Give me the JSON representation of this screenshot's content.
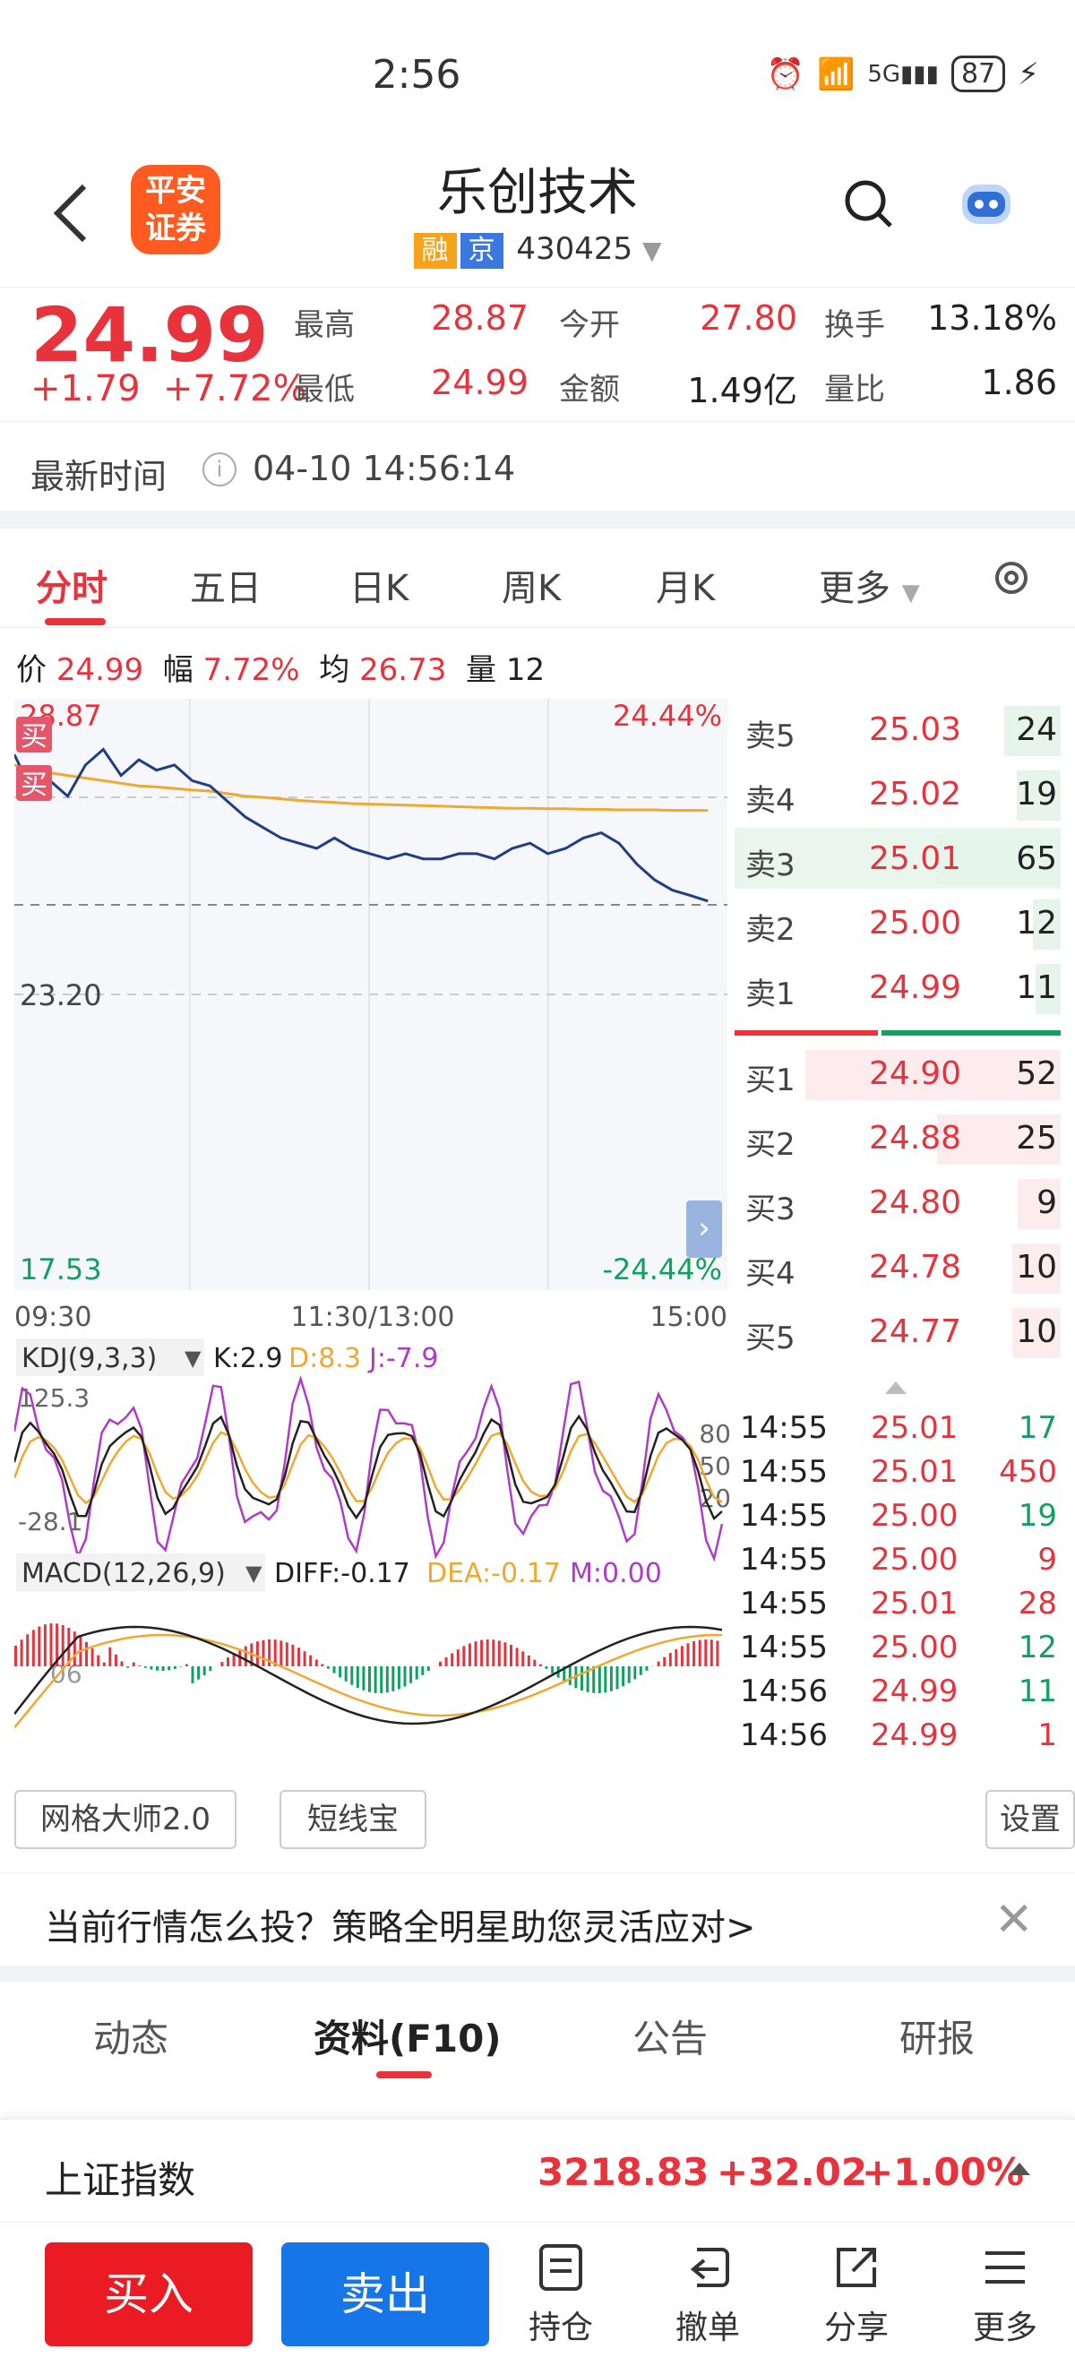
{
  "status_bar": {
    "time": "2:56",
    "battery": "87"
  },
  "header": {
    "back_icon": "chevron-left-icon",
    "logo_line1": "平安",
    "logo_line2": "证券",
    "stock_name": "乐创技术",
    "tag1": "融",
    "tag2": "京",
    "stock_code": "430425"
  },
  "quote": {
    "price": "24.99",
    "change": "+1.79",
    "change_pct": "+7.72%",
    "high_label": "最高",
    "high": "28.87",
    "open_label": "今开",
    "open": "27.80",
    "turnover_label": "换手",
    "turnover": "13.18%",
    "low_label": "最低",
    "low": "24.99",
    "amount_label": "金额",
    "amount": "1.49亿",
    "vol_ratio_label": "量比",
    "vol_ratio": "1.86"
  },
  "latest": {
    "label": "最新时间",
    "info": "i",
    "time": "04-10 14:56:14"
  },
  "tabs": [
    "分时",
    "五日",
    "日K",
    "周K",
    "月K",
    "更多"
  ],
  "indicators": {
    "price_label": "价",
    "price": "24.99",
    "range_label": "幅",
    "range": "7.72%",
    "avg_label": "均",
    "avg": "26.73",
    "vol_label": "量",
    "vol": "12"
  },
  "chart_data": {
    "type": "line",
    "y_top_label": "28.87",
    "y_mid_label": "23.20",
    "y_bottom_label": "17.53",
    "pct_top_label": "24.44%",
    "pct_bottom_label": "-24.44%",
    "x_labels": [
      "09:30",
      "11:30/13:00",
      "15:00"
    ],
    "ylim": [
      17.53,
      28.87
    ],
    "ref_price": 23.2,
    "buy_markers": [
      "买",
      "买"
    ],
    "price_series": [
      27.8,
      27.1,
      27.3,
      27.0,
      27.6,
      27.9,
      27.4,
      27.7,
      27.5,
      27.6,
      27.3,
      27.2,
      26.9,
      26.6,
      26.4,
      26.2,
      26.1,
      26.0,
      26.2,
      26.0,
      25.9,
      25.8,
      25.9,
      25.8,
      25.8,
      25.9,
      25.9,
      25.8,
      26.0,
      26.1,
      25.9,
      26.0,
      26.2,
      26.3,
      26.1,
      25.7,
      25.4,
      25.2,
      25.1,
      24.99
    ],
    "avg_series": [
      27.6,
      27.5,
      27.45,
      27.4,
      27.35,
      27.3,
      27.25,
      27.2,
      27.18,
      27.15,
      27.12,
      27.1,
      27.05,
      27.0,
      26.98,
      26.95,
      26.92,
      26.9,
      26.88,
      26.86,
      26.85,
      26.84,
      26.83,
      26.82,
      26.81,
      26.8,
      26.79,
      26.78,
      26.77,
      26.77,
      26.76,
      26.76,
      26.75,
      26.75,
      26.74,
      26.74,
      26.74,
      26.73,
      26.73,
      26.73
    ]
  },
  "kdj": {
    "name": "KDJ(9,3,3)",
    "k": "K:2.9",
    "d": "D:8.3",
    "j": "J:-7.9",
    "top_label": "125.3",
    "bottom_label": "-28.1",
    "right_labels": [
      "80",
      "50",
      "20"
    ]
  },
  "macd": {
    "name": "MACD(12,26,9)",
    "diff": "DIFF:-0.17",
    "dea": "DEA:-0.17",
    "m": "M:0.00",
    "left_label": "06"
  },
  "orderbook": {
    "asks": [
      {
        "label": "卖5",
        "price": "25.03",
        "vol": "24",
        "bar": 0.45
      },
      {
        "label": "卖4",
        "price": "25.02",
        "vol": "19",
        "bar": 0.35
      },
      {
        "label": "卖3",
        "price": "25.01",
        "vol": "65",
        "bar": 1.0
      },
      {
        "label": "卖2",
        "price": "25.00",
        "vol": "12",
        "bar": 0.22
      },
      {
        "label": "卖1",
        "price": "24.99",
        "vol": "11",
        "bar": 0.2
      }
    ],
    "bids": [
      {
        "label": "买1",
        "price": "24.90",
        "vol": "52",
        "bar": 0.95
      },
      {
        "label": "买2",
        "price": "24.88",
        "vol": "25",
        "bar": 0.46
      },
      {
        "label": "买3",
        "price": "24.80",
        "vol": "9",
        "bar": 0.16
      },
      {
        "label": "买4",
        "price": "24.78",
        "vol": "10",
        "bar": 0.18
      },
      {
        "label": "买5",
        "price": "24.77",
        "vol": "10",
        "bar": 0.18
      }
    ],
    "ticks": [
      {
        "time": "14:55",
        "price": "25.01",
        "vol": "17",
        "side": "buy"
      },
      {
        "time": "14:55",
        "price": "25.01",
        "vol": "450",
        "side": "sell"
      },
      {
        "time": "14:55",
        "price": "25.00",
        "vol": "19",
        "side": "buy"
      },
      {
        "time": "14:55",
        "price": "25.00",
        "vol": "9",
        "side": "sell"
      },
      {
        "time": "14:55",
        "price": "25.01",
        "vol": "28",
        "side": "sell"
      },
      {
        "time": "14:55",
        "price": "25.00",
        "vol": "12",
        "side": "buy"
      },
      {
        "time": "14:56",
        "price": "24.99",
        "vol": "11",
        "side": "buy"
      },
      {
        "time": "14:56",
        "price": "24.99",
        "vol": "1",
        "side": "sell"
      }
    ]
  },
  "tools": {
    "grid_master": "网格大师2.0",
    "short_line": "短线宝",
    "settings": "设置"
  },
  "banner": {
    "text": "当前行情怎么投？策略全明星助您灵活应对>"
  },
  "info_tabs": [
    "动态",
    "资料(F10)",
    "公告",
    "研报"
  ],
  "index_bar": {
    "name": "上证指数",
    "value": "3218.83",
    "change": "+32.02",
    "pct": "+1.00%"
  },
  "bottom_nav": {
    "buy": "买入",
    "sell": "卖出",
    "items": [
      {
        "label": "持仓",
        "icon": "document-icon"
      },
      {
        "label": "撤单",
        "icon": "undo-icon"
      },
      {
        "label": "分享",
        "icon": "share-icon"
      },
      {
        "label": "更多",
        "icon": "menu-icon"
      }
    ]
  },
  "colors": {
    "up": "#e8323c",
    "down": "#10a060",
    "price_line": "#1f3e86",
    "avg_line": "#f0a830"
  }
}
